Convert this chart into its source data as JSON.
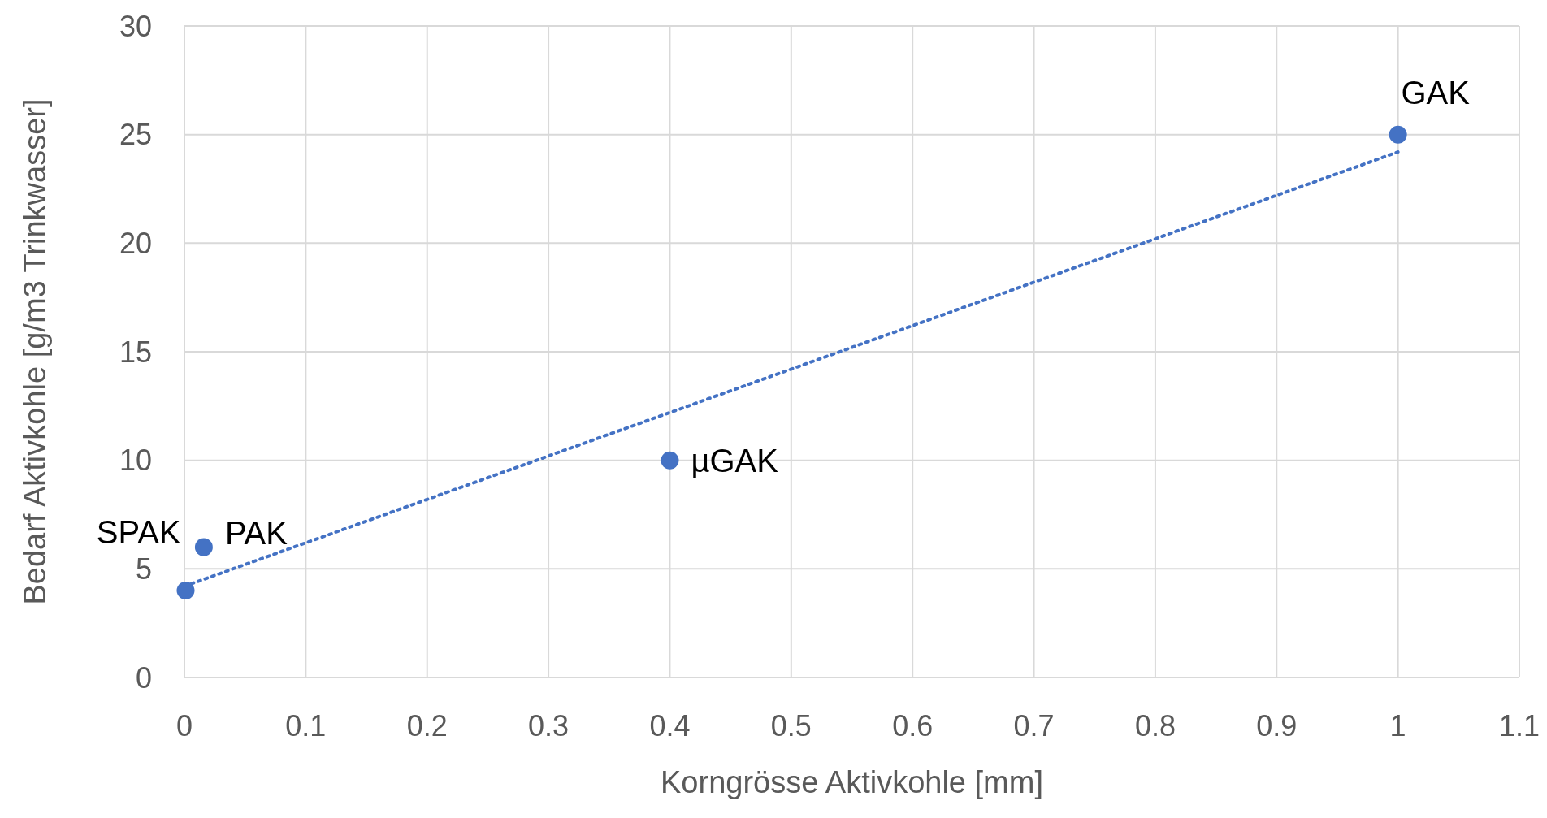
{
  "chart_data": {
    "type": "scatter",
    "xlabel": "Korngrösse Aktivkohle [mm]",
    "ylabel": "Bedarf Aktivkohle  [g/m3 Trinkwasser]",
    "xlim": [
      0,
      1.1
    ],
    "xticks": [
      0,
      0.1,
      0.2,
      0.3,
      0.4,
      0.5,
      0.6,
      0.7,
      0.8,
      0.9,
      1,
      1.1
    ],
    "ylim": [
      0,
      30
    ],
    "yticks": [
      0,
      5,
      10,
      15,
      20,
      25,
      30
    ],
    "grid": true,
    "marker": "circle",
    "series": [
      {
        "color": "#4472c4",
        "x": [
          0.001,
          0.016,
          0.4,
          1
        ],
        "values": [
          4,
          6,
          10,
          25
        ]
      },
      {
        "type": "line",
        "color": "#4472c4",
        "line_style": "dotted",
        "marker": "none",
        "x": [
          0,
          1
        ],
        "values": [
          4.2,
          24.2
        ]
      }
    ],
    "annotations": [
      {
        "text": "SPAK",
        "x": 0.001,
        "y": 4
      },
      {
        "text": "PAK",
        "x": 0.016,
        "y": 6
      },
      {
        "text": "µGAK",
        "x": 0.4,
        "y": 10
      },
      {
        "text": "GAK",
        "x": 1,
        "y": 25
      }
    ]
  }
}
